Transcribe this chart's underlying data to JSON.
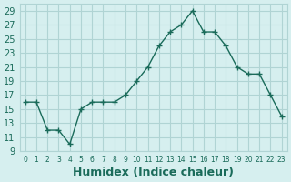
{
  "x": [
    0,
    1,
    2,
    3,
    4,
    5,
    6,
    7,
    8,
    9,
    10,
    11,
    12,
    13,
    14,
    15,
    16,
    17,
    18,
    19,
    20,
    21,
    22,
    23
  ],
  "y": [
    16,
    16,
    12,
    12,
    10,
    15,
    16,
    16,
    16,
    17,
    19,
    21,
    24,
    26,
    27,
    29,
    26,
    26,
    24,
    21,
    20,
    20,
    17,
    14
  ],
  "line_color": "#1a6b5a",
  "marker": "+",
  "marker_size": 5,
  "bg_color": "#d6efef",
  "grid_color": "#b0d4d4",
  "xlabel": "Humidex (Indice chaleur)",
  "xlabel_fontsize": 9,
  "xlabel_color": "#1a6b5a",
  "tick_color": "#1a6b5a",
  "ylim": [
    9,
    30
  ],
  "yticks": [
    9,
    11,
    13,
    15,
    17,
    19,
    21,
    23,
    25,
    27,
    29
  ],
  "xtick_labels": [
    "0",
    "1",
    "2",
    "3",
    "4",
    "5",
    "6",
    "7",
    "8",
    "9",
    "10",
    "11",
    "12",
    "13",
    "14",
    "15",
    "16",
    "17",
    "18",
    "19",
    "20",
    "21",
    "22",
    "23"
  ]
}
